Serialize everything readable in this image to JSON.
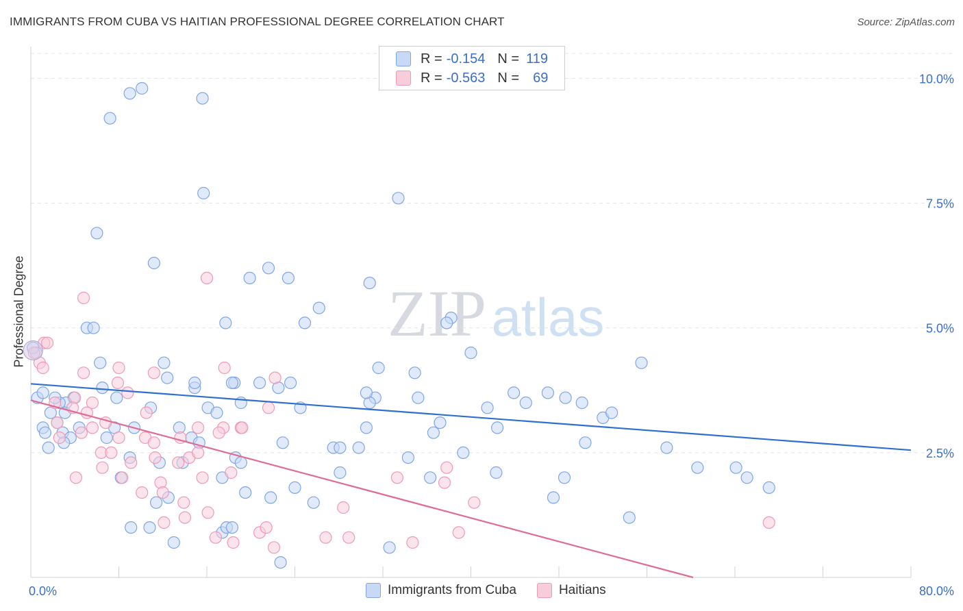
{
  "title": "IMMIGRANTS FROM CUBA VS HAITIAN PROFESSIONAL DEGREE CORRELATION CHART",
  "source": "Source: ZipAtlas.com",
  "watermark": {
    "zip": "ZIP",
    "atlas": "atlas"
  },
  "legend": {
    "rows": [
      {
        "r_label": "R =",
        "r_value": "-0.154",
        "n_label": "N =",
        "n_value": "119",
        "color": "#a9c4f0"
      },
      {
        "r_label": "R =",
        "r_value": "-0.563",
        "n_label": "N =",
        "n_value": "69",
        "color": "#f5b3c8"
      }
    ]
  },
  "chart_data": {
    "type": "scatter",
    "title": "IMMIGRANTS FROM CUBA VS HAITIAN PROFESSIONAL DEGREE CORRELATION CHART",
    "xlabel": "",
    "ylabel": "Professional Degree",
    "xlim": [
      0,
      80
    ],
    "ylim": [
      0,
      10.5
    ],
    "x_tick_labels": [
      "0.0%",
      "80.0%"
    ],
    "y_ticks": [
      2.5,
      5.0,
      7.5,
      10.0
    ],
    "y_tick_labels": [
      "2.5%",
      "5.0%",
      "7.5%",
      "10.0%"
    ],
    "grid": true,
    "series": [
      {
        "name": "Immigrants from Cuba",
        "color": "#7fa6e6",
        "fill": "#c7d9f5",
        "line_color": "#2f6fd1",
        "trend": {
          "x": [
            0,
            80
          ],
          "y": [
            3.88,
            2.55
          ]
        },
        "points": [
          [
            9.0,
            9.7
          ],
          [
            10.1,
            9.8
          ],
          [
            15.6,
            9.6
          ],
          [
            7.2,
            9.2
          ],
          [
            15.7,
            7.7
          ],
          [
            33.4,
            7.6
          ],
          [
            6.0,
            6.9
          ],
          [
            11.2,
            6.3
          ],
          [
            21.6,
            6.2
          ],
          [
            19.9,
            6.0
          ],
          [
            23.4,
            6.0
          ],
          [
            30.8,
            5.9
          ],
          [
            26.2,
            5.4
          ],
          [
            17.7,
            5.1
          ],
          [
            24.9,
            5.1
          ],
          [
            38.2,
            5.2
          ],
          [
            37.8,
            5.1
          ],
          [
            5.1,
            5.0
          ],
          [
            5.7,
            5.0
          ],
          [
            40.0,
            4.5
          ],
          [
            55.5,
            4.3
          ],
          [
            6.3,
            4.3
          ],
          [
            12.1,
            4.3
          ],
          [
            31.6,
            4.2
          ],
          [
            34.9,
            4.1
          ],
          [
            0.5,
            4.5
          ],
          [
            12.4,
            4.0
          ],
          [
            20.8,
            3.9
          ],
          [
            18.5,
            3.9
          ],
          [
            18.3,
            3.9
          ],
          [
            23.6,
            3.9
          ],
          [
            0.6,
            3.6
          ],
          [
            14.9,
            3.8
          ],
          [
            22.5,
            3.8
          ],
          [
            31.3,
            3.6
          ],
          [
            43.9,
            3.7
          ],
          [
            47.0,
            3.7
          ],
          [
            48.6,
            3.6
          ],
          [
            6.5,
            3.8
          ],
          [
            7.8,
            3.6
          ],
          [
            3.9,
            3.6
          ],
          [
            3.2,
            3.5
          ],
          [
            2.6,
            3.5
          ],
          [
            19.1,
            3.5
          ],
          [
            24.5,
            3.4
          ],
          [
            30.8,
            3.5
          ],
          [
            35.2,
            3.6
          ],
          [
            45.0,
            3.5
          ],
          [
            1.8,
            3.3
          ],
          [
            3.1,
            3.3
          ],
          [
            10.9,
            3.4
          ],
          [
            16.1,
            3.4
          ],
          [
            16.9,
            3.3
          ],
          [
            41.5,
            3.4
          ],
          [
            50.1,
            3.5
          ],
          [
            37.2,
            3.1
          ],
          [
            52.0,
            3.2
          ],
          [
            52.8,
            3.3
          ],
          [
            1.1,
            3.0
          ],
          [
            2.4,
            3.1
          ],
          [
            4.4,
            3.0
          ],
          [
            7.6,
            3.0
          ],
          [
            9.4,
            3.0
          ],
          [
            13.5,
            3.0
          ],
          [
            30.5,
            3.0
          ],
          [
            36.6,
            2.9
          ],
          [
            42.4,
            3.0
          ],
          [
            1.3,
            2.9
          ],
          [
            2.9,
            2.9
          ],
          [
            3.6,
            2.8
          ],
          [
            6.9,
            2.8
          ],
          [
            14.6,
            2.8
          ],
          [
            1.6,
            2.6
          ],
          [
            3.0,
            2.7
          ],
          [
            22.9,
            2.7
          ],
          [
            27.5,
            2.6
          ],
          [
            28.1,
            2.6
          ],
          [
            29.8,
            2.6
          ],
          [
            50.4,
            2.7
          ],
          [
            57.8,
            2.6
          ],
          [
            34.3,
            2.4
          ],
          [
            39.3,
            2.5
          ],
          [
            48.5,
            2.0
          ],
          [
            9.0,
            2.4
          ],
          [
            11.7,
            2.3
          ],
          [
            13.8,
            2.3
          ],
          [
            18.6,
            2.4
          ],
          [
            19.1,
            2.3
          ],
          [
            28.1,
            2.1
          ],
          [
            36.3,
            2.0
          ],
          [
            42.3,
            2.1
          ],
          [
            60.6,
            2.2
          ],
          [
            64.1,
            2.2
          ],
          [
            65.1,
            2.0
          ],
          [
            67.1,
            1.8
          ],
          [
            8.2,
            2.0
          ],
          [
            17.4,
            2.0
          ],
          [
            12.5,
            1.6
          ],
          [
            11.4,
            1.5
          ],
          [
            19.5,
            1.7
          ],
          [
            21.8,
            1.6
          ],
          [
            24.0,
            1.8
          ],
          [
            25.7,
            1.5
          ],
          [
            47.5,
            1.6
          ],
          [
            54.4,
            1.2
          ],
          [
            9.1,
            1.0
          ],
          [
            10.8,
            1.0
          ],
          [
            17.4,
            0.9
          ],
          [
            17.8,
            1.0
          ],
          [
            18.3,
            1.0
          ],
          [
            13.0,
            0.7
          ],
          [
            32.6,
            0.6
          ],
          [
            22.7,
            0.3
          ],
          [
            1.1,
            3.7
          ],
          [
            2.2,
            3.6
          ],
          [
            0.2,
            4.6
          ],
          [
            15.3,
            2.7
          ],
          [
            14.9,
            3.9
          ],
          [
            30.5,
            3.7
          ]
        ]
      },
      {
        "name": "Haitians",
        "color": "#ef9ab5",
        "fill": "#f8cddb",
        "line_color": "#e06b93",
        "trend": {
          "x": [
            0,
            60.2
          ],
          "y": [
            3.55,
            0.0
          ]
        },
        "points": [
          [
            16.0,
            6.0
          ],
          [
            4.8,
            5.6
          ],
          [
            1.2,
            4.7
          ],
          [
            1.5,
            4.7
          ],
          [
            0.8,
            4.3
          ],
          [
            1.1,
            4.2
          ],
          [
            4.8,
            4.1
          ],
          [
            8.0,
            4.2
          ],
          [
            11.2,
            4.1
          ],
          [
            17.6,
            4.2
          ],
          [
            22.2,
            4.0
          ],
          [
            7.9,
            3.9
          ],
          [
            8.8,
            3.7
          ],
          [
            4.0,
            3.6
          ],
          [
            2.2,
            3.5
          ],
          [
            3.8,
            3.4
          ],
          [
            5.6,
            3.5
          ],
          [
            5.1,
            3.3
          ],
          [
            2.4,
            3.1
          ],
          [
            6.8,
            3.1
          ],
          [
            10.5,
            3.3
          ],
          [
            15.2,
            3.0
          ],
          [
            17.5,
            3.0
          ],
          [
            19.1,
            3.0
          ],
          [
            19.2,
            3.0
          ],
          [
            21.6,
            3.4
          ],
          [
            2.6,
            2.8
          ],
          [
            4.6,
            2.9
          ],
          [
            8.0,
            2.8
          ],
          [
            10.4,
            2.8
          ],
          [
            11.2,
            2.7
          ],
          [
            13.6,
            2.8
          ],
          [
            17.1,
            2.9
          ],
          [
            6.4,
            2.5
          ],
          [
            7.3,
            2.5
          ],
          [
            9.1,
            2.3
          ],
          [
            11.3,
            2.4
          ],
          [
            13.4,
            2.3
          ],
          [
            14.4,
            2.4
          ],
          [
            15.2,
            2.5
          ],
          [
            6.5,
            2.2
          ],
          [
            8.3,
            2.0
          ],
          [
            4.1,
            2.0
          ],
          [
            11.8,
            1.9
          ],
          [
            10.1,
            1.7
          ],
          [
            12.0,
            1.7
          ],
          [
            15.6,
            2.0
          ],
          [
            18.2,
            2.1
          ],
          [
            33.3,
            2.0
          ],
          [
            37.6,
            1.9
          ],
          [
            37.8,
            2.2
          ],
          [
            13.9,
            1.5
          ],
          [
            16.1,
            1.3
          ],
          [
            28.4,
            1.4
          ],
          [
            40.3,
            1.5
          ],
          [
            12.1,
            1.1
          ],
          [
            14.0,
            1.2
          ],
          [
            20.8,
            0.9
          ],
          [
            21.4,
            1.0
          ],
          [
            16.8,
            0.8
          ],
          [
            18.4,
            0.7
          ],
          [
            22.1,
            0.6
          ],
          [
            26.8,
            0.8
          ],
          [
            28.9,
            0.8
          ],
          [
            34.7,
            0.7
          ],
          [
            38.9,
            0.9
          ],
          [
            67.1,
            1.1
          ],
          [
            0.3,
            4.5
          ],
          [
            5.6,
            3.0
          ]
        ]
      }
    ]
  },
  "bottom_legend": [
    {
      "label": "Immigrants from Cuba",
      "color": "#a9c4f0"
    },
    {
      "label": "Haitians",
      "color": "#f5b3c8"
    }
  ]
}
